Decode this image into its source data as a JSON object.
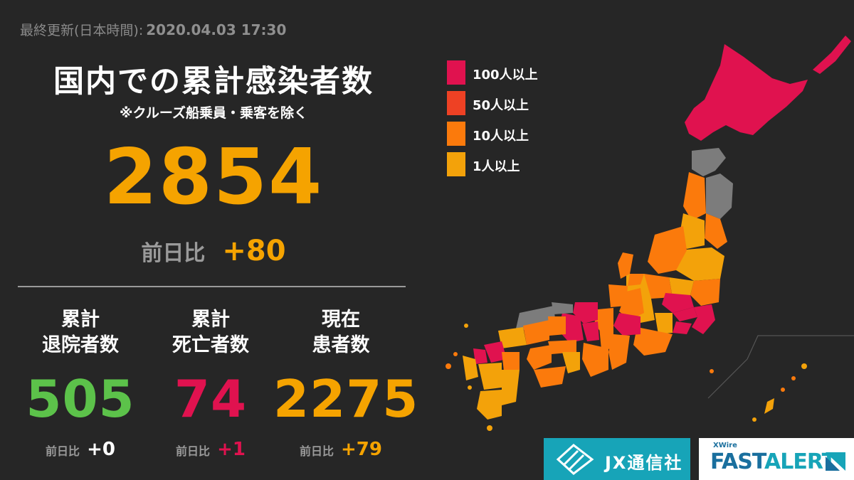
{
  "updated": {
    "label": "最終更新(日本時間):",
    "value": "2020.04.03 17:30"
  },
  "title": "国内での累計感染者数",
  "subtitle": "※クルーズ船乗員・乗客を除く",
  "total": {
    "value": "2854",
    "diff_label": "前日比",
    "diff_value": "+80"
  },
  "stats": [
    {
      "label": "累計\n退院者数",
      "value": "505",
      "diff_label": "前日比",
      "diff_value": "+0",
      "color": "#5cc24a",
      "diff_color": "#ffffff"
    },
    {
      "label": "累計\n死亡者数",
      "value": "74",
      "diff_label": "前日比",
      "diff_value": "+1",
      "color": "#e0124f",
      "diff_color": "#e0124f"
    },
    {
      "label": "現在\n患者数",
      "value": "2275",
      "diff_label": "前日比",
      "diff_value": "+79",
      "color": "#f5a300",
      "diff_color": "#f5a300"
    }
  ],
  "legend": [
    {
      "label": "100人以上",
      "color": "#e0124f"
    },
    {
      "label": "50人以上",
      "color": "#ee4124"
    },
    {
      "label": "10人以上",
      "color": "#fb7a0c"
    },
    {
      "label": "1人以上",
      "color": "#f3a20a"
    }
  ],
  "map": {
    "colors": {
      "c100": "#e0124f",
      "c50": "#ee4124",
      "c10": "#fb7a0c",
      "c1": "#f3a20a",
      "none": "#7c7c7c"
    }
  },
  "logos": {
    "jx": "JX通信社",
    "xwire": "XWire",
    "fast": "FAST",
    "alert": "ALERT"
  }
}
